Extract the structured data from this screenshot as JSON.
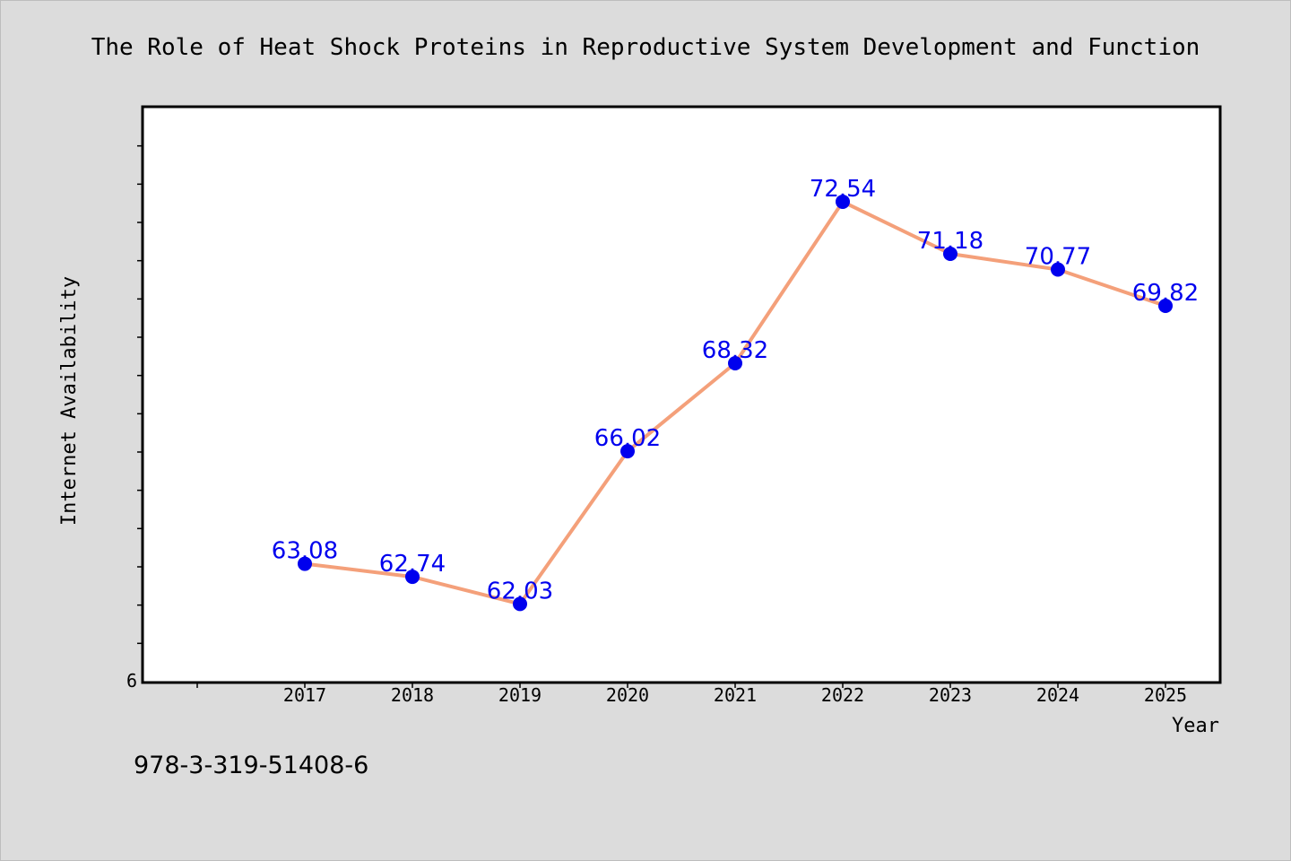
{
  "chart_data": {
    "type": "line",
    "title": "The Role of Heat Shock Proteins in Reproductive System Development and Function",
    "xlabel": "Year",
    "ylabel": "Internet Availability",
    "categories": [
      "2017",
      "2018",
      "2019",
      "2020",
      "2021",
      "2022",
      "2023",
      "2024",
      "2025"
    ],
    "series": [
      {
        "values": [
          63.08,
          62.74,
          62.03,
          66.02,
          68.32,
          72.54,
          71.18,
          70.77,
          69.82
        ],
        "labels": [
          "63.08",
          "62.74",
          "62.03",
          "66.02",
          "68.32",
          "72.54",
          "71.18",
          "70.77",
          "69.82"
        ]
      }
    ],
    "ylim": [
      60,
      75
    ],
    "y_tick_labels": [
      "6"
    ],
    "line_color": "#f4a07a",
    "marker_color": "#0000ee",
    "data_label_color": "#0000ee",
    "plot_background": "#ffffff",
    "figure_background": "#dcdcdc",
    "grid": false,
    "legend": "none"
  },
  "footer": {
    "code": "978-3-319-51408-6"
  }
}
